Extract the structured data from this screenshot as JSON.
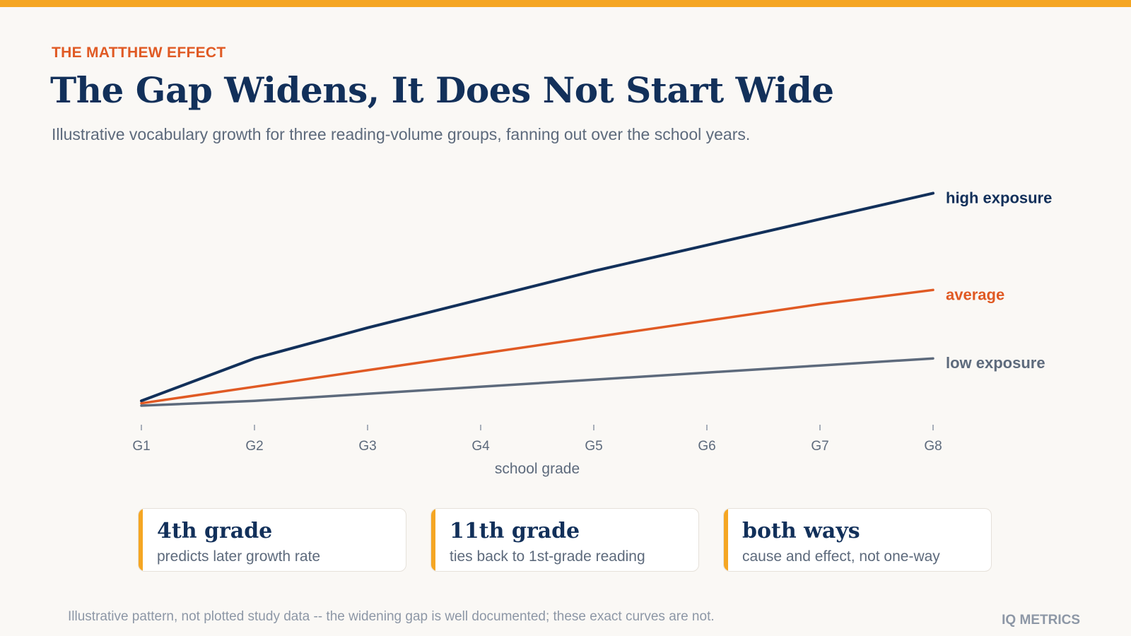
{
  "eyebrow": "THE MATTHEW EFFECT",
  "title": "The Gap Widens, It Does Not Start Wide",
  "subtitle": "Illustrative vocabulary growth for three reading-volume groups, fanning out over the school years.",
  "colors": {
    "accent_top": "#f5a623",
    "eyebrow": "#e05a24",
    "title": "#12305a",
    "high": "#12305a",
    "average": "#e05a24",
    "low": "#5d6a7c",
    "card_accent": "#f5a623"
  },
  "chart_data": {
    "type": "line",
    "xlabel": "school grade",
    "ylabel": "",
    "categories": [
      "G1",
      "G2",
      "G3",
      "G4",
      "G5",
      "G6",
      "G7",
      "G8"
    ],
    "ylim": [
      0,
      100
    ],
    "grid": false,
    "legend": "direct labels at line ends",
    "series": [
      {
        "name": "high exposure",
        "color": "#12305a",
        "values": [
          2,
          20,
          33,
          45,
          57,
          68,
          79,
          90
        ]
      },
      {
        "name": "average",
        "color": "#e05a24",
        "values": [
          1,
          8,
          15,
          22,
          29,
          36,
          43,
          49
        ]
      },
      {
        "name": "low exposure",
        "color": "#5d6a7c",
        "values": [
          0,
          2,
          5,
          8,
          11,
          14,
          17,
          20
        ]
      }
    ]
  },
  "cards": [
    {
      "title": "4th grade",
      "desc": "predicts later growth rate"
    },
    {
      "title": "11th grade",
      "desc": "ties back to 1st-grade reading"
    },
    {
      "title": "both ways",
      "desc": "cause and effect, not one-way"
    }
  ],
  "footnote": "Illustrative pattern, not plotted study data -- the widening gap is well documented; these exact curves are not.",
  "brand": "IQ METRICS"
}
